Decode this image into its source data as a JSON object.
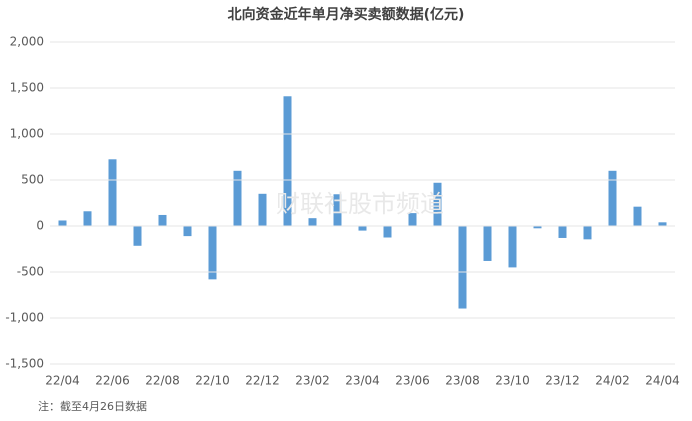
{
  "chart_data": {
    "type": "bar",
    "title": "北向资金近年单月净买卖额数据(亿元)",
    "categories": [
      "22/04",
      null,
      "22/06",
      null,
      "22/08",
      null,
      "22/10",
      null,
      "22/12",
      null,
      "23/02",
      null,
      "23/04",
      null,
      "23/06",
      null,
      "23/08",
      null,
      "23/10",
      null,
      "23/12",
      null,
      "24/02",
      null,
      "24/04"
    ],
    "values": [
      60,
      160,
      725,
      -215,
      120,
      -110,
      -580,
      600,
      350,
      1410,
      85,
      345,
      -50,
      -125,
      140,
      470,
      -897,
      -380,
      -450,
      -25,
      -130,
      -145,
      600,
      210,
      40
    ],
    "color": "#5b9bd5",
    "ylim": [
      -1500,
      2000
    ],
    "yticks": [
      {
        "value": -1500,
        "label": "-1,500"
      },
      {
        "value": -1000,
        "label": "-1,000"
      },
      -500,
      0,
      500,
      {
        "value": 1000,
        "label": "1,000"
      },
      {
        "value": 1500,
        "label": "1,500"
      },
      {
        "value": 2000,
        "label": "2,000"
      }
    ],
    "grid": true,
    "note": "注：截至4月26日数据",
    "watermark": "财联社股市频道"
  }
}
